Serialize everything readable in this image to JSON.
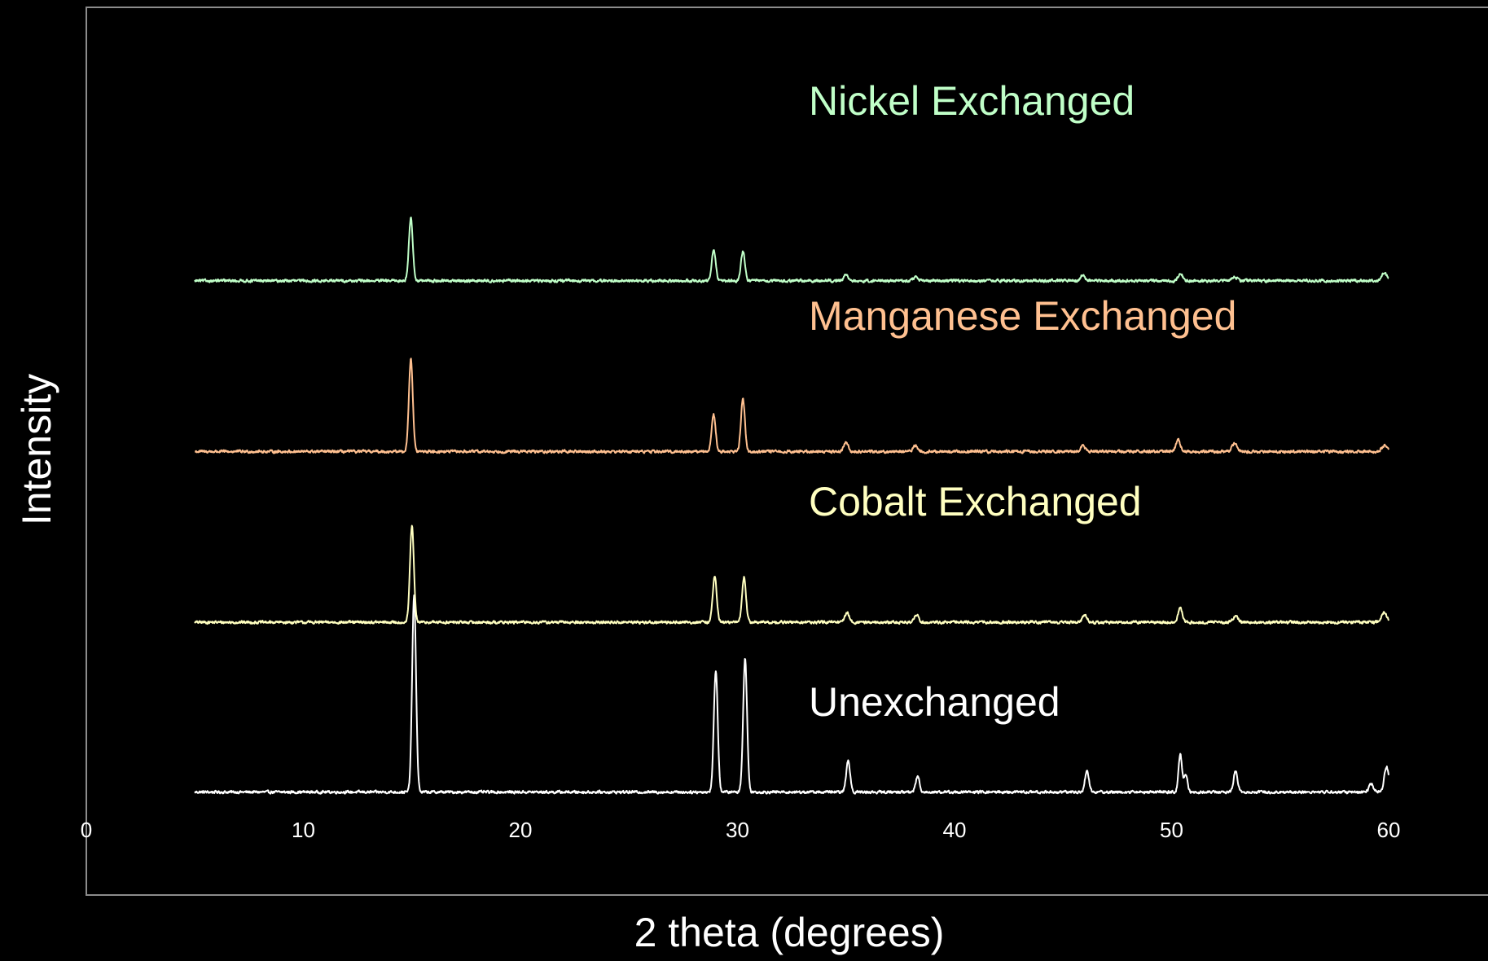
{
  "chart_data": {
    "type": "line",
    "title": "",
    "xlabel": "2 theta (degrees)",
    "ylabel": "Intensity",
    "xlim": [
      0,
      60
    ],
    "x_range": [
      5,
      60
    ],
    "xticks": [
      0,
      10,
      20,
      30,
      40,
      50,
      60
    ],
    "yticks": [],
    "grid": false,
    "legend": "inline labels above each trace",
    "series": [
      {
        "name": "Unexchanged",
        "color": "#ffffff",
        "offset": 0,
        "baseline_height": 1.0,
        "noise": 0.5,
        "peaks": [
          {
            "x": 15.1,
            "height": 100,
            "width": 0.09
          },
          {
            "x": 29.0,
            "height": 62,
            "width": 0.09
          },
          {
            "x": 30.35,
            "height": 68,
            "width": 0.09
          },
          {
            "x": 35.1,
            "height": 16,
            "width": 0.09
          },
          {
            "x": 38.3,
            "height": 8,
            "width": 0.09
          },
          {
            "x": 46.1,
            "height": 11,
            "width": 0.09
          },
          {
            "x": 50.4,
            "height": 19,
            "width": 0.08
          },
          {
            "x": 50.65,
            "height": 9,
            "width": 0.08
          },
          {
            "x": 52.95,
            "height": 11,
            "width": 0.09
          },
          {
            "x": 59.2,
            "height": 4,
            "width": 0.1
          },
          {
            "x": 59.9,
            "height": 13,
            "width": 0.1
          }
        ]
      },
      {
        "name": "Cobalt Exchanged",
        "color": "#ffffc0",
        "offset": 87,
        "baseline_height": 0.5,
        "noise": 0.5,
        "peaks": [
          {
            "x": 15.0,
            "height": 49,
            "width": 0.09
          },
          {
            "x": 28.95,
            "height": 24,
            "width": 0.09
          },
          {
            "x": 30.3,
            "height": 23,
            "width": 0.09
          },
          {
            "x": 35.05,
            "height": 5,
            "width": 0.1
          },
          {
            "x": 38.25,
            "height": 4,
            "width": 0.1
          },
          {
            "x": 46.0,
            "height": 4,
            "width": 0.1
          },
          {
            "x": 50.4,
            "height": 7,
            "width": 0.1
          },
          {
            "x": 52.95,
            "height": 3,
            "width": 0.12
          },
          {
            "x": 59.8,
            "height": 5,
            "width": 0.12
          }
        ]
      },
      {
        "name": "Manganese Exchanged",
        "color": "#ffc090",
        "offset": 174,
        "baseline_height": 0.5,
        "noise": 0.5,
        "peaks": [
          {
            "x": 14.95,
            "height": 47,
            "width": 0.09
          },
          {
            "x": 28.9,
            "height": 19,
            "width": 0.09
          },
          {
            "x": 30.25,
            "height": 27,
            "width": 0.09
          },
          {
            "x": 35.0,
            "height": 5,
            "width": 0.1
          },
          {
            "x": 38.2,
            "height": 3,
            "width": 0.1
          },
          {
            "x": 45.9,
            "height": 3,
            "width": 0.1
          },
          {
            "x": 50.3,
            "height": 6,
            "width": 0.1
          },
          {
            "x": 52.9,
            "height": 4,
            "width": 0.12
          },
          {
            "x": 59.8,
            "height": 3,
            "width": 0.12
          }
        ]
      },
      {
        "name": "Nickel Exchanged",
        "color": "#c0ffc8",
        "offset": 261,
        "baseline_height": 0.5,
        "noise": 0.5,
        "peaks": [
          {
            "x": 14.95,
            "height": 32,
            "width": 0.09
          },
          {
            "x": 28.9,
            "height": 16,
            "width": 0.09
          },
          {
            "x": 30.25,
            "height": 15,
            "width": 0.09
          },
          {
            "x": 35.0,
            "height": 3,
            "width": 0.1
          },
          {
            "x": 38.2,
            "height": 2,
            "width": 0.1
          },
          {
            "x": 45.9,
            "height": 3,
            "width": 0.1
          },
          {
            "x": 50.4,
            "height": 4,
            "width": 0.1
          },
          {
            "x": 52.9,
            "height": 2,
            "width": 0.12
          },
          {
            "x": 59.8,
            "height": 4,
            "width": 0.12
          }
        ]
      }
    ]
  }
}
